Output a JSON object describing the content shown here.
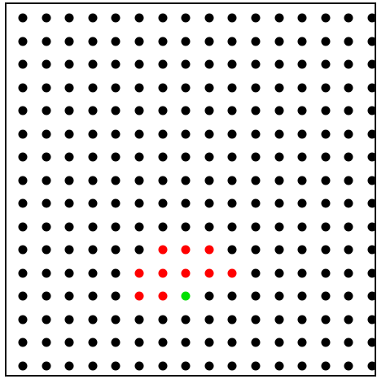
{
  "board": {
    "rows": 16,
    "cols": 16,
    "default_color": "#000000",
    "highlight_colors": {
      "red": "#ff0000",
      "green": "#00e000"
    },
    "red_cells": [
      [
        10,
        6
      ],
      [
        10,
        7
      ],
      [
        10,
        8
      ],
      [
        11,
        5
      ],
      [
        11,
        6
      ],
      [
        11,
        7
      ],
      [
        11,
        8
      ],
      [
        11,
        9
      ],
      [
        12,
        5
      ],
      [
        12,
        6
      ]
    ],
    "green_cells": [
      [
        12,
        7
      ]
    ]
  }
}
